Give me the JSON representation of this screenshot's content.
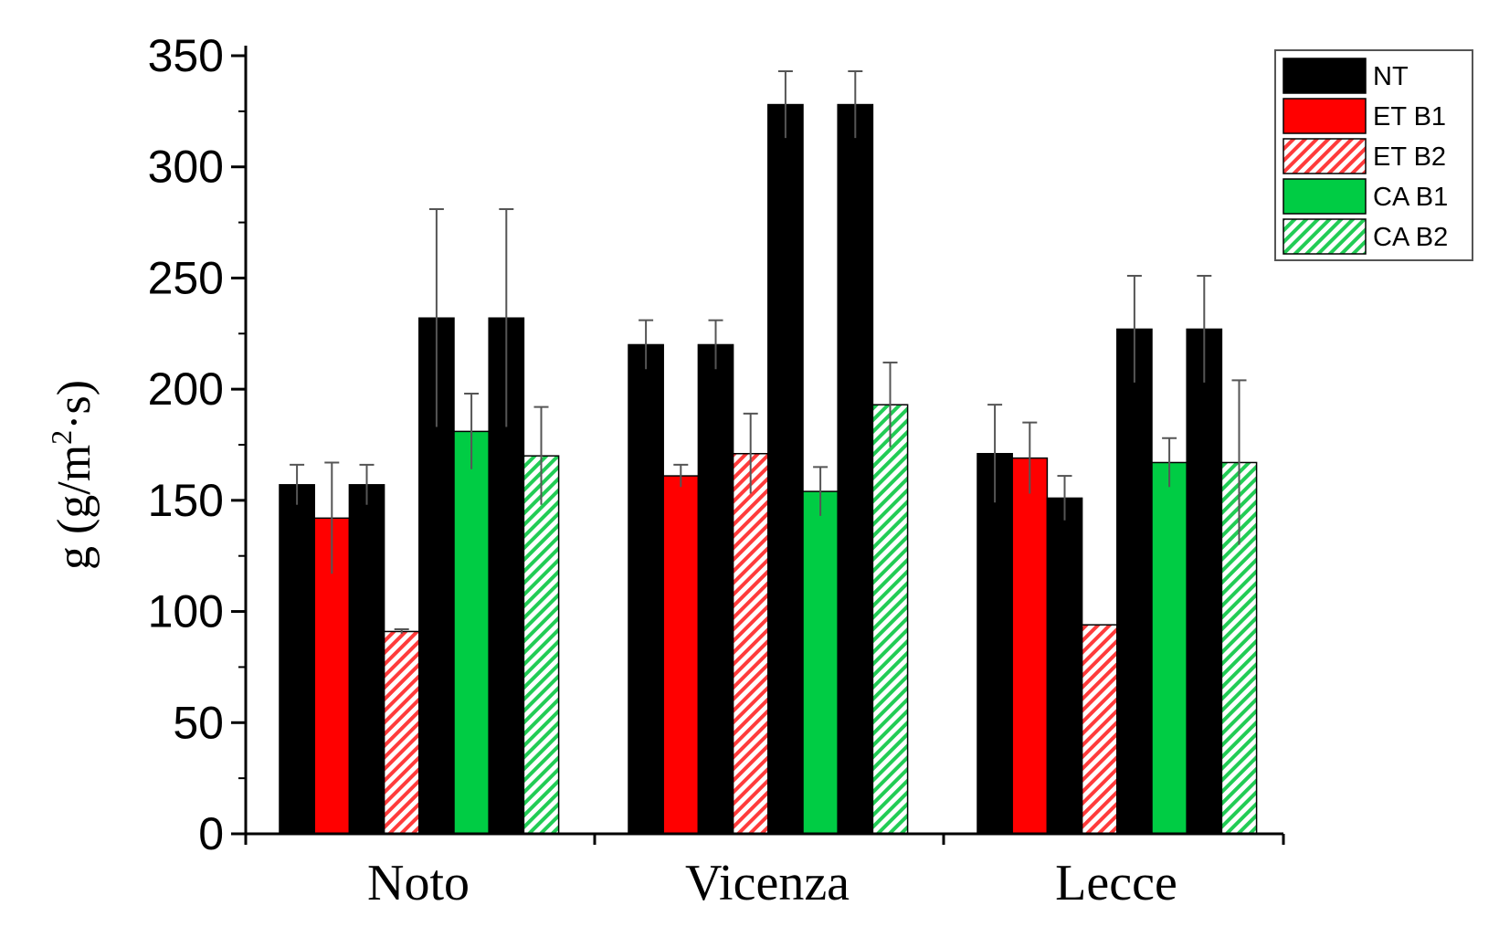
{
  "chart_data": {
    "type": "bar",
    "categories": [
      "Noto",
      "Vicenza",
      "Lecce"
    ],
    "ylabel_main": "g (g/m",
    "ylabel_sup": "2",
    "ylabel_tail": "·s)",
    "ylim": [
      0,
      350
    ],
    "yticks": [
      0,
      50,
      100,
      150,
      200,
      250,
      300,
      350
    ],
    "legend_position": "top-right",
    "bar_order": [
      "NT",
      "ET B1",
      "NT",
      "ET B2",
      "NT",
      "CA B1",
      "NT",
      "CA B2"
    ],
    "series": [
      {
        "name": "NT",
        "color": "#000000",
        "pattern": "solid"
      },
      {
        "name": "ET B1",
        "color": "#ff0000",
        "pattern": "solid"
      },
      {
        "name": "ET B2",
        "color": "#ff0000",
        "pattern": "hatch"
      },
      {
        "name": "CA B1",
        "color": "#00cc44",
        "pattern": "solid"
      },
      {
        "name": "CA B2",
        "color": "#00cc44",
        "pattern": "hatch"
      }
    ],
    "bars": [
      [
        {
          "series": "NT",
          "value": 157,
          "error": 9
        },
        {
          "series": "ET B1",
          "value": 142,
          "error": 25
        },
        {
          "series": "NT",
          "value": 157,
          "error": 9
        },
        {
          "series": "ET B2",
          "value": 91,
          "error": 1
        },
        {
          "series": "NT",
          "value": 232,
          "error": 49
        },
        {
          "series": "CA B1",
          "value": 181,
          "error": 17
        },
        {
          "series": "NT",
          "value": 232,
          "error": 49
        },
        {
          "series": "CA B2",
          "value": 170,
          "error": 22
        }
      ],
      [
        {
          "series": "NT",
          "value": 220,
          "error": 11
        },
        {
          "series": "ET B1",
          "value": 161,
          "error": 5
        },
        {
          "series": "NT",
          "value": 220,
          "error": 11
        },
        {
          "series": "ET B2",
          "value": 171,
          "error": 18
        },
        {
          "series": "NT",
          "value": 328,
          "error": 15
        },
        {
          "series": "CA B1",
          "value": 154,
          "error": 11
        },
        {
          "series": "NT",
          "value": 328,
          "error": 15
        },
        {
          "series": "CA B2",
          "value": 193,
          "error": 19
        }
      ],
      [
        {
          "series": "NT",
          "value": 171,
          "error": 22
        },
        {
          "series": "ET B1",
          "value": 169,
          "error": 16
        },
        {
          "series": "NT",
          "value": 151,
          "error": 10
        },
        {
          "series": "ET B2",
          "value": 94,
          "error": 0
        },
        {
          "series": "NT",
          "value": 227,
          "error": 24
        },
        {
          "series": "CA B1",
          "value": 167,
          "error": 11
        },
        {
          "series": "NT",
          "value": 227,
          "error": 24
        },
        {
          "series": "CA B2",
          "value": 167,
          "error": 37
        }
      ]
    ]
  }
}
